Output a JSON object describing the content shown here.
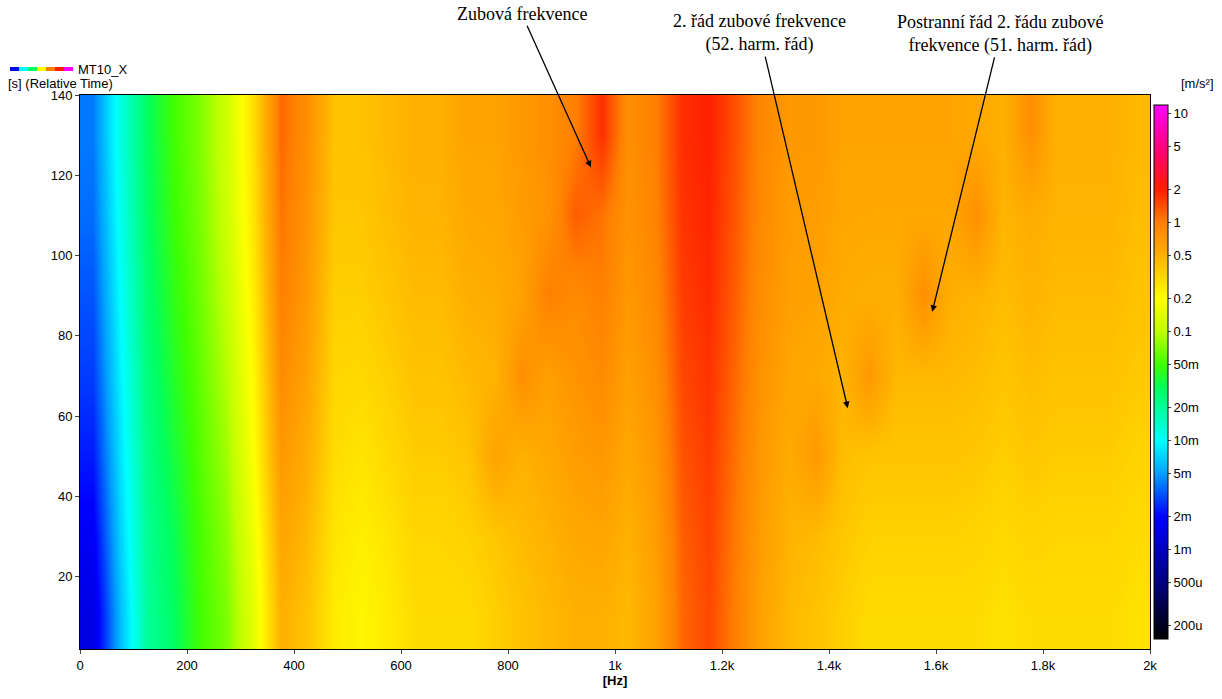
{
  "chart_data": {
    "type": "heatmap",
    "name": "MT10_X",
    "x_label": "[Hz]",
    "y_label": "[s] (Relative Time)",
    "grid": false,
    "xlim": [
      0,
      2000
    ],
    "xticks": [
      0,
      200,
      400,
      600,
      800,
      {
        "value": 1000,
        "label": "1k"
      },
      {
        "value": 1200,
        "label": "1.2k"
      },
      {
        "value": 1400,
        "label": "1.4k"
      },
      {
        "value": 1600,
        "label": "1.6k"
      },
      {
        "value": 1800,
        "label": "1.8k"
      },
      {
        "value": 2000,
        "label": "2k"
      }
    ],
    "ylim": [
      2,
      140
    ],
    "yticks": [
      20,
      40,
      60,
      80,
      100,
      120,
      140
    ],
    "x": [
      25,
      75,
      125,
      175,
      225,
      275,
      325,
      375,
      425,
      475,
      525,
      575,
      625,
      675,
      725,
      775,
      825,
      875,
      925,
      975,
      1025,
      1075,
      1125,
      1175,
      1225,
      1275,
      1325,
      1375,
      1425,
      1475,
      1525,
      1575,
      1625,
      1675,
      1725,
      1775,
      1825,
      1875,
      1925,
      1975
    ],
    "y": [
      10,
      30,
      50,
      70,
      90,
      110,
      130
    ],
    "cells": [
      [
        0.0015,
        0.006,
        0.02,
        0.03,
        0.05,
        0.07,
        0.15,
        0.5,
        0.4,
        0.25,
        0.22,
        0.25,
        0.3,
        0.3,
        0.3,
        0.35,
        0.4,
        0.45,
        0.5,
        0.5,
        0.45,
        0.6,
        1.2,
        1.5,
        1.0,
        0.6,
        0.45,
        0.4,
        0.35,
        0.3,
        0.3,
        0.3,
        0.3,
        0.3,
        0.28,
        0.3,
        0.3,
        0.3,
        0.3,
        0.28
      ],
      [
        0.0018,
        0.007,
        0.021,
        0.032,
        0.052,
        0.076,
        0.17,
        0.58,
        0.45,
        0.27,
        0.24,
        0.27,
        0.32,
        0.32,
        0.34,
        0.38,
        0.44,
        0.49,
        0.56,
        0.58,
        0.49,
        0.65,
        1.27,
        1.56,
        1.05,
        0.64,
        0.48,
        0.44,
        0.38,
        0.34,
        0.34,
        0.34,
        0.34,
        0.33,
        0.31,
        0.33,
        0.32,
        0.32,
        0.32,
        0.3
      ],
      [
        0.0023,
        0.008,
        0.023,
        0.036,
        0.056,
        0.085,
        0.2,
        0.7,
        0.52,
        0.3,
        0.27,
        0.31,
        0.36,
        0.36,
        0.39,
        0.6,
        0.49,
        0.56,
        0.65,
        0.71,
        0.56,
        0.72,
        1.38,
        1.65,
        1.12,
        0.69,
        0.53,
        0.7,
        0.43,
        0.39,
        0.39,
        0.39,
        0.39,
        0.38,
        0.35,
        0.38,
        0.36,
        0.36,
        0.36,
        0.33
      ],
      [
        0.0028,
        0.009,
        0.025,
        0.04,
        0.06,
        0.095,
        0.22,
        0.85,
        0.6,
        0.32,
        0.31,
        0.35,
        0.4,
        0.4,
        0.45,
        0.48,
        0.8,
        0.63,
        0.75,
        0.85,
        0.63,
        0.8,
        1.5,
        1.75,
        1.2,
        0.75,
        0.58,
        0.55,
        0.48,
        0.7,
        0.45,
        0.45,
        0.45,
        0.43,
        0.39,
        0.43,
        0.4,
        0.4,
        0.4,
        0.37
      ],
      [
        0.0032,
        0.01,
        0.027,
        0.044,
        0.064,
        0.105,
        0.25,
        1.0,
        0.68,
        0.35,
        0.35,
        0.39,
        0.44,
        0.44,
        0.51,
        0.53,
        0.61,
        1.0,
        0.85,
        0.99,
        0.7,
        0.88,
        1.62,
        1.85,
        1.28,
        0.81,
        0.63,
        0.61,
        0.53,
        0.51,
        0.51,
        0.8,
        0.51,
        0.48,
        0.43,
        0.48,
        0.44,
        0.44,
        0.44,
        0.4
      ],
      [
        0.0037,
        0.011,
        0.029,
        0.048,
        0.068,
        0.115,
        0.28,
        1.1,
        0.75,
        0.38,
        0.38,
        0.43,
        0.48,
        0.48,
        0.56,
        0.57,
        0.66,
        0.76,
        1.3,
        1.1,
        0.76,
        0.95,
        1.73,
        1.94,
        1.35,
        0.86,
        0.67,
        0.66,
        0.57,
        0.56,
        0.56,
        0.56,
        0.56,
        0.8,
        0.47,
        0.52,
        0.48,
        0.48,
        0.48,
        0.43
      ],
      [
        0.004,
        0.012,
        0.03,
        0.05,
        0.07,
        0.12,
        0.3,
        1.2,
        0.8,
        0.4,
        0.4,
        0.45,
        0.5,
        0.5,
        0.6,
        0.6,
        0.7,
        0.8,
        1.0,
        1.8,
        0.8,
        1.0,
        1.8,
        2.0,
        1.4,
        0.9,
        0.7,
        0.7,
        0.6,
        0.6,
        0.6,
        0.6,
        0.6,
        0.55,
        0.5,
        0.8,
        0.5,
        0.5,
        0.5,
        0.45
      ]
    ],
    "colorbar": {
      "title": "[m/s²]",
      "log": true,
      "range": [
        0.00015,
        12
      ],
      "ticks": [
        10,
        5,
        2,
        1,
        0.5,
        0.2,
        0.1,
        {
          "value": 0.05,
          "label": "50m"
        },
        {
          "value": 0.02,
          "label": "20m"
        },
        {
          "value": 0.01,
          "label": "10m"
        },
        {
          "value": 0.005,
          "label": "5m"
        },
        {
          "value": 0.002,
          "label": "2m"
        },
        {
          "value": 0.001,
          "label": "1m"
        },
        {
          "value": 0.0005,
          "label": "500u"
        },
        {
          "value": 0.0002,
          "label": "200u"
        }
      ]
    },
    "annotations": [
      {
        "text": "Zubová frekvence",
        "x": 955,
        "y": 122
      },
      {
        "text": "2. řád zubové frekvence\n(52. harm. řád)",
        "x": 1435,
        "y": 62
      },
      {
        "text": "Postranní řád 2. řádu zubové\nfrekvence (51. harm. řád)",
        "x": 1593,
        "y": 86
      }
    ]
  }
}
